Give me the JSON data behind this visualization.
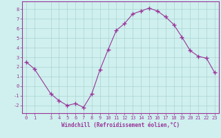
{
  "x": [
    0,
    1,
    3,
    4,
    5,
    6,
    7,
    8,
    9,
    10,
    11,
    12,
    13,
    14,
    15,
    16,
    17,
    18,
    19,
    20,
    21,
    22,
    23
  ],
  "y": [
    2.5,
    1.8,
    -0.8,
    -1.5,
    -2.0,
    -1.8,
    -2.2,
    -0.8,
    1.7,
    3.8,
    5.8,
    6.5,
    7.5,
    7.8,
    8.1,
    7.8,
    7.2,
    6.4,
    5.1,
    3.7,
    3.1,
    2.9,
    1.4
  ],
  "line_color": "#993399",
  "marker": "+",
  "marker_size": 4,
  "bg_color": "#cff0ee",
  "grid_color": "#aad4d0",
  "xlabel": "Windchill (Refroidissement éolien,°C)",
  "xlim": [
    -0.5,
    23.5
  ],
  "ylim": [
    -2.8,
    8.8
  ],
  "yticks": [
    -2,
    -1,
    0,
    1,
    2,
    3,
    4,
    5,
    6,
    7,
    8
  ],
  "xticks": [
    0,
    1,
    3,
    4,
    5,
    6,
    7,
    8,
    9,
    10,
    11,
    12,
    13,
    14,
    15,
    16,
    17,
    18,
    19,
    20,
    21,
    22,
    23
  ],
  "tick_color": "#993399",
  "label_color": "#993399",
  "spine_color": "#993399",
  "tick_fontsize": 5.0,
  "xlabel_fontsize": 5.5
}
